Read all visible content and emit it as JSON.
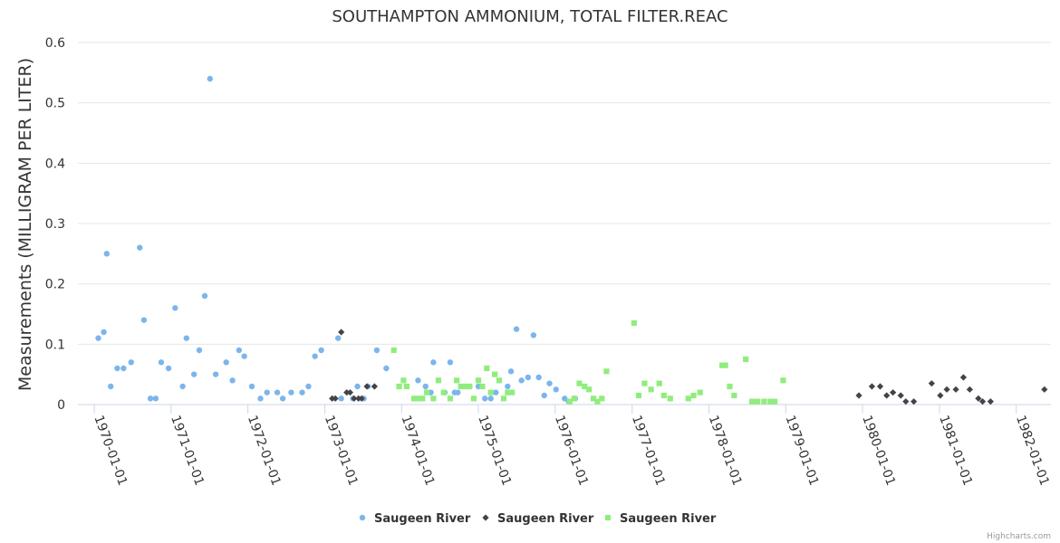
{
  "chart_data": {
    "type": "scatter",
    "title": "SOUTHAMPTON AMMONIUM, TOTAL FILTER.REAC",
    "ylabel": "Measurements (MILLIGRAM PER LITER)",
    "xlabel": "",
    "xlim": [
      "1969-10-15",
      "1982-06-15"
    ],
    "ylim": [
      0,
      0.6
    ],
    "yticks": [
      0,
      0.1,
      0.2,
      0.3,
      0.4,
      0.5,
      0.6
    ],
    "ytick_labels": [
      "0",
      "0.1",
      "0.2",
      "0.3",
      "0.4",
      "0.5",
      "0.6"
    ],
    "xticks": [
      "1970-01-01",
      "1971-01-01",
      "1972-01-01",
      "1973-01-01",
      "1974-01-01",
      "1975-01-01",
      "1976-01-01",
      "1977-01-01",
      "1978-01-01",
      "1979-01-01",
      "1980-01-01",
      "1981-01-01",
      "1982-01-01"
    ],
    "grid": "horizontal",
    "legend_position": "bottom-center",
    "credits": "Highcharts.com",
    "series": [
      {
        "name": "Saugeen River",
        "marker": "circle",
        "color": "#7cb5ec",
        "points": [
          [
            "1970-01-20",
            0.11
          ],
          [
            "1970-02-15",
            0.12
          ],
          [
            "1970-03-01",
            0.25
          ],
          [
            "1970-03-20",
            0.03
          ],
          [
            "1970-04-20",
            0.06
          ],
          [
            "1970-05-20",
            0.06
          ],
          [
            "1970-06-25",
            0.07
          ],
          [
            "1970-08-05",
            0.26
          ],
          [
            "1970-08-25",
            0.14
          ],
          [
            "1970-09-25",
            0.01
          ],
          [
            "1970-10-20",
            0.01
          ],
          [
            "1970-11-15",
            0.07
          ],
          [
            "1970-12-20",
            0.06
          ],
          [
            "1971-01-20",
            0.16
          ],
          [
            "1971-02-25",
            0.03
          ],
          [
            "1971-03-15",
            0.11
          ],
          [
            "1971-04-20",
            0.05
          ],
          [
            "1971-05-15",
            0.09
          ],
          [
            "1971-06-10",
            0.18
          ],
          [
            "1971-07-05",
            0.54
          ],
          [
            "1971-08-01",
            0.05
          ],
          [
            "1971-09-20",
            0.07
          ],
          [
            "1971-10-20",
            0.04
          ],
          [
            "1971-11-20",
            0.09
          ],
          [
            "1971-12-15",
            0.08
          ],
          [
            "1972-01-20",
            0.03
          ],
          [
            "1972-03-01",
            0.01
          ],
          [
            "1972-04-01",
            0.02
          ],
          [
            "1972-05-20",
            0.02
          ],
          [
            "1972-06-15",
            0.01
          ],
          [
            "1972-07-25",
            0.02
          ],
          [
            "1972-09-15",
            0.02
          ],
          [
            "1972-10-15",
            0.03
          ],
          [
            "1972-11-15",
            0.08
          ],
          [
            "1972-12-15",
            0.09
          ],
          [
            "1973-03-05",
            0.11
          ],
          [
            "1973-03-20",
            0.01
          ],
          [
            "1973-05-15",
            0.01
          ],
          [
            "1973-06-05",
            0.03
          ],
          [
            "1973-07-05",
            0.01
          ],
          [
            "1973-07-25",
            0.03
          ],
          [
            "1973-09-05",
            0.09
          ],
          [
            "1973-10-20",
            0.06
          ],
          [
            "1974-03-20",
            0.04
          ],
          [
            "1974-04-25",
            0.03
          ],
          [
            "1974-05-20",
            0.02
          ],
          [
            "1974-06-01",
            0.07
          ],
          [
            "1974-07-25",
            0.02
          ],
          [
            "1974-08-20",
            0.07
          ],
          [
            "1974-09-10",
            0.02
          ],
          [
            "1974-09-25",
            0.02
          ],
          [
            "1974-11-20",
            0.03
          ],
          [
            "1975-01-01",
            0.03
          ],
          [
            "1975-02-01",
            0.01
          ],
          [
            "1975-03-01",
            0.01
          ],
          [
            "1975-03-25",
            0.02
          ],
          [
            "1975-05-20",
            0.03
          ],
          [
            "1975-06-05",
            0.055
          ],
          [
            "1975-07-01",
            0.125
          ],
          [
            "1975-07-25",
            0.04
          ],
          [
            "1975-08-25",
            0.045
          ],
          [
            "1975-09-20",
            0.115
          ],
          [
            "1975-10-15",
            0.045
          ],
          [
            "1975-11-10",
            0.015
          ],
          [
            "1975-12-05",
            0.035
          ],
          [
            "1976-01-05",
            0.025
          ],
          [
            "1976-02-15",
            0.01
          ],
          [
            "1976-03-05",
            0.005
          ],
          [
            "1976-04-05",
            0.01
          ]
        ]
      },
      {
        "name": "Saugeen River",
        "marker": "diamond",
        "color": "#434348",
        "points": [
          [
            "1973-02-05",
            0.01
          ],
          [
            "1973-02-20",
            0.01
          ],
          [
            "1973-03-20",
            0.12
          ],
          [
            "1973-04-15",
            0.02
          ],
          [
            "1973-05-01",
            0.02
          ],
          [
            "1973-05-20",
            0.01
          ],
          [
            "1973-06-10",
            0.01
          ],
          [
            "1973-06-25",
            0.01
          ],
          [
            "1973-07-20",
            0.03
          ],
          [
            "1973-08-25",
            0.03
          ],
          [
            "1979-12-15",
            0.015
          ],
          [
            "1980-02-15",
            0.03
          ],
          [
            "1980-03-25",
            0.03
          ],
          [
            "1980-04-25",
            0.015
          ],
          [
            "1980-05-25",
            0.02
          ],
          [
            "1980-07-01",
            0.015
          ],
          [
            "1980-07-25",
            0.005
          ],
          [
            "1980-09-01",
            0.005
          ],
          [
            "1980-11-25",
            0.035
          ],
          [
            "1981-01-05",
            0.015
          ],
          [
            "1981-02-05",
            0.025
          ],
          [
            "1981-03-20",
            0.025
          ],
          [
            "1981-04-25",
            0.045
          ],
          [
            "1981-05-25",
            0.025
          ],
          [
            "1981-07-05",
            0.01
          ],
          [
            "1981-07-25",
            0.005
          ],
          [
            "1981-09-01",
            0.005
          ],
          [
            "1982-05-15",
            0.025
          ]
        ]
      },
      {
        "name": "Saugeen River",
        "marker": "square",
        "color": "#90ed7d",
        "points": [
          [
            "1973-11-25",
            0.09
          ],
          [
            "1973-12-20",
            0.03
          ],
          [
            "1974-01-10",
            0.04
          ],
          [
            "1974-01-25",
            0.03
          ],
          [
            "1974-03-01",
            0.01
          ],
          [
            "1974-03-20",
            0.01
          ],
          [
            "1974-04-10",
            0.01
          ],
          [
            "1974-05-01",
            0.02
          ],
          [
            "1974-06-01",
            0.01
          ],
          [
            "1974-06-25",
            0.04
          ],
          [
            "1974-07-20",
            0.02
          ],
          [
            "1974-08-20",
            0.01
          ],
          [
            "1974-09-20",
            0.04
          ],
          [
            "1974-10-10",
            0.03
          ],
          [
            "1974-11-01",
            0.03
          ],
          [
            "1974-11-20",
            0.03
          ],
          [
            "1974-12-10",
            0.01
          ],
          [
            "1975-01-01",
            0.04
          ],
          [
            "1975-01-20",
            0.03
          ],
          [
            "1975-02-10",
            0.06
          ],
          [
            "1975-03-01",
            0.02
          ],
          [
            "1975-03-20",
            0.05
          ],
          [
            "1975-04-10",
            0.04
          ],
          [
            "1975-05-01",
            0.01
          ],
          [
            "1975-05-20",
            0.02
          ],
          [
            "1975-06-10",
            0.02
          ],
          [
            "1976-03-10",
            0.005
          ],
          [
            "1976-04-01",
            0.01
          ],
          [
            "1976-04-25",
            0.035
          ],
          [
            "1976-05-20",
            0.03
          ],
          [
            "1976-06-10",
            0.025
          ],
          [
            "1976-07-01",
            0.01
          ],
          [
            "1976-07-20",
            0.005
          ],
          [
            "1976-08-10",
            0.01
          ],
          [
            "1976-09-01",
            0.055
          ],
          [
            "1977-01-10",
            0.135
          ],
          [
            "1977-02-01",
            0.015
          ],
          [
            "1977-03-01",
            0.035
          ],
          [
            "1977-04-01",
            0.025
          ],
          [
            "1977-05-10",
            0.035
          ],
          [
            "1977-06-01",
            0.015
          ],
          [
            "1977-07-01",
            0.01
          ],
          [
            "1977-09-25",
            0.01
          ],
          [
            "1977-10-20",
            0.015
          ],
          [
            "1977-11-20",
            0.02
          ],
          [
            "1978-03-05",
            0.065
          ],
          [
            "1978-03-20",
            0.065
          ],
          [
            "1978-04-10",
            0.03
          ],
          [
            "1978-05-01",
            0.015
          ],
          [
            "1978-06-25",
            0.075
          ],
          [
            "1978-07-25",
            0.005
          ],
          [
            "1978-08-20",
            0.005
          ],
          [
            "1978-09-20",
            0.005
          ],
          [
            "1978-10-20",
            0.005
          ],
          [
            "1978-11-10",
            0.005
          ],
          [
            "1978-12-20",
            0.04
          ]
        ]
      }
    ]
  }
}
